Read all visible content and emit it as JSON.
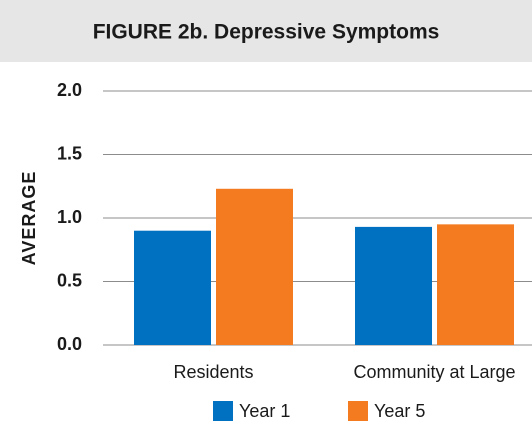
{
  "chart_data": {
    "type": "bar",
    "title": "FIGURE 2b. Depressive Symptoms",
    "y_label": "AVERAGE",
    "categories": [
      "Residents",
      "Community at Large"
    ],
    "series": [
      {
        "name": "Year 1",
        "color": "#0070c0",
        "values": [
          0.9,
          0.93
        ]
      },
      {
        "name": "Year 5",
        "color": "#f47b20",
        "values": [
          1.23,
          0.95
        ]
      }
    ],
    "ylim": [
      0,
      2
    ],
    "yticks": [
      {
        "value": 0,
        "label": "0.0"
      },
      {
        "value": 0.5,
        "label": "0.5"
      },
      {
        "value": 1,
        "label": "1.0"
      },
      {
        "value": 1.5,
        "label": "1.5"
      },
      {
        "value": 2,
        "label": "2.0"
      }
    ],
    "grid": true,
    "legend": "bottom"
  }
}
